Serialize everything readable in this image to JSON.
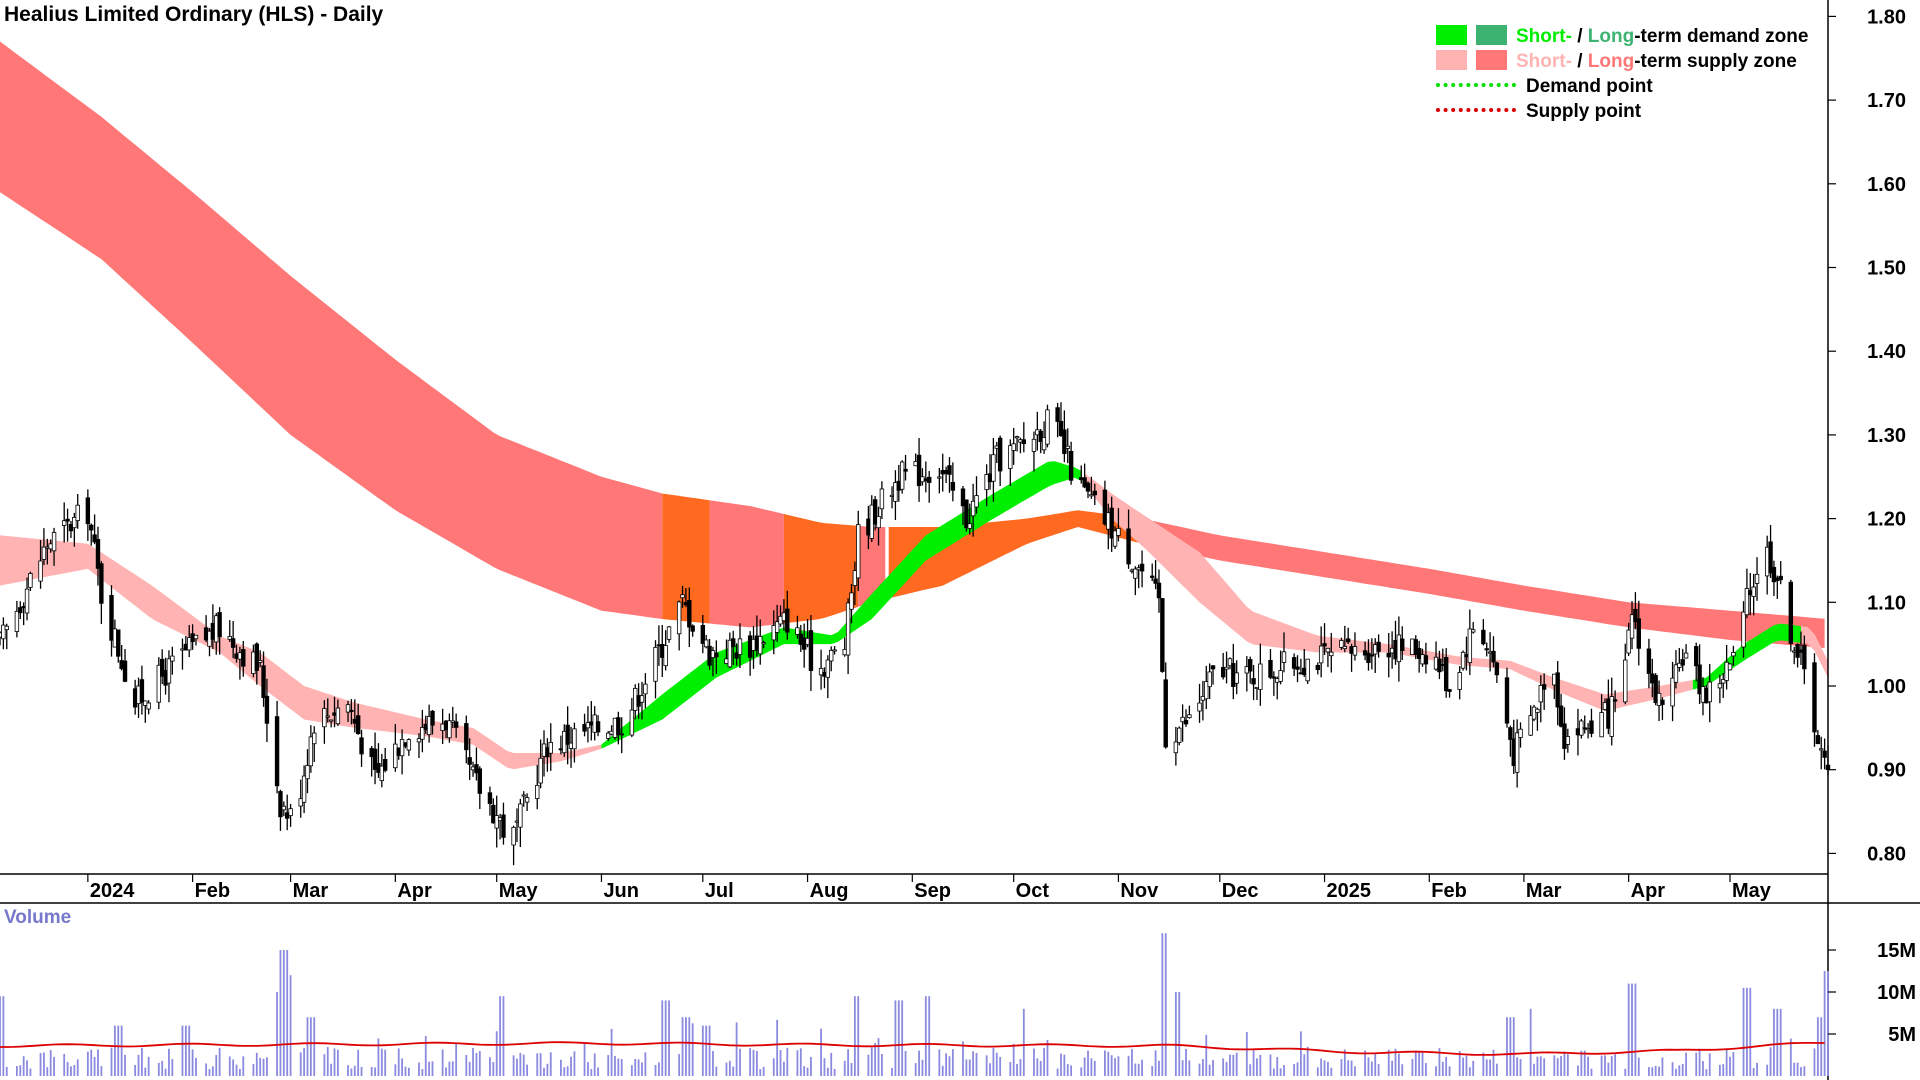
{
  "title": "Healius Limited Ordinary (HLS) - Daily",
  "legend": {
    "row1": {
      "short": "Short-",
      "sep": " / ",
      "long": "Long",
      "rest": "-term demand zone"
    },
    "row2": {
      "short": "Short-",
      "sep": " / ",
      "long": "Long",
      "rest": "-term supply zone"
    },
    "row3": "Demand point",
    "row4": "Supply point"
  },
  "volume_label": "Volume",
  "colors": {
    "short_demand": "#00ee00",
    "long_demand": "#3cb371",
    "short_supply": "#ffb3b3",
    "long_supply": "#ff7777",
    "overlap": "#ff6a20",
    "demand_point": "#00dd00",
    "supply_point": "#dd0000",
    "volume_bar": "#8a8ae0",
    "volume_avg": "#dd0000",
    "axis": "#000000",
    "volume_text": "#7777cc"
  },
  "chart_data": [
    {
      "type": "candlestick",
      "title": "Healius Limited Ordinary (HLS) - Daily",
      "ylim": [
        0.77,
        1.82
      ],
      "y_ticks": [
        0.8,
        0.9,
        1.0,
        1.1,
        1.2,
        1.3,
        1.4,
        1.5,
        1.6,
        1.7,
        1.8
      ],
      "y_tick_labels": [
        "0.80",
        "0.90",
        "1.00",
        "1.10",
        "1.20",
        "1.30",
        "1.40",
        "1.50",
        "1.60",
        "1.70",
        "1.80"
      ],
      "x_ticks": [
        "2024",
        "Feb",
        "Mar",
        "Apr",
        "May",
        "Jun",
        "Jul",
        "Aug",
        "Sep",
        "Oct",
        "Nov",
        "Dec",
        "2025",
        "Feb",
        "Mar",
        "Apr",
        "May"
      ],
      "x_tick_dates": [
        "2024-01-01",
        "2024-02-01",
        "2024-03-01",
        "2024-04-01",
        "2024-05-01",
        "2024-06-01",
        "2024-07-01",
        "2024-08-01",
        "2024-09-01",
        "2024-10-01",
        "2024-11-01",
        "2024-12-01",
        "2025-01-01",
        "2025-02-01",
        "2025-03-01",
        "2025-04-01",
        "2025-05-01"
      ],
      "x_range": [
        "2023-12-06",
        "2025-05-30"
      ],
      "close_anchors": [
        [
          "2023-12-06",
          1.05
        ],
        [
          "2023-12-20",
          1.17
        ],
        [
          "2024-01-01",
          1.21
        ],
        [
          "2024-01-05",
          1.11
        ],
        [
          "2024-01-15",
          0.98
        ],
        [
          "2024-01-30",
          1.04
        ],
        [
          "2024-02-09",
          1.07
        ],
        [
          "2024-02-21",
          1.02
        ],
        [
          "2024-02-27",
          0.86
        ],
        [
          "2024-03-02",
          0.84
        ],
        [
          "2024-03-08",
          0.96
        ],
        [
          "2024-03-18",
          0.98
        ],
        [
          "2024-03-26",
          0.89
        ],
        [
          "2024-04-05",
          0.95
        ],
        [
          "2024-04-16",
          0.96
        ],
        [
          "2024-04-24",
          0.89
        ],
        [
          "2024-05-02",
          0.84
        ],
        [
          "2024-05-05",
          0.81
        ],
        [
          "2024-05-16",
          0.93
        ],
        [
          "2024-05-30",
          0.95
        ],
        [
          "2024-06-08",
          0.96
        ],
        [
          "2024-06-19",
          1.05
        ],
        [
          "2024-06-25",
          1.1
        ],
        [
          "2024-07-03",
          1.04
        ],
        [
          "2024-07-15",
          1.05
        ],
        [
          "2024-07-26",
          1.08
        ],
        [
          "2024-08-04",
          1.02
        ],
        [
          "2024-08-12",
          1.05
        ],
        [
          "2024-08-16",
          1.18
        ],
        [
          "2024-08-28",
          1.25
        ],
        [
          "2024-09-09",
          1.26
        ],
        [
          "2024-09-17",
          1.2
        ],
        [
          "2024-09-26",
          1.27
        ],
        [
          "2024-10-04",
          1.29
        ],
        [
          "2024-10-12",
          1.32
        ],
        [
          "2024-10-20",
          1.24
        ],
        [
          "2024-10-30",
          1.19
        ],
        [
          "2024-11-09",
          1.13
        ],
        [
          "2024-11-13",
          1.1
        ],
        [
          "2024-11-15",
          0.94
        ],
        [
          "2024-11-22",
          0.96
        ],
        [
          "2024-11-30",
          1.02
        ],
        [
          "2024-12-09",
          1.01
        ],
        [
          "2024-12-25",
          1.03
        ],
        [
          "2025-01-08",
          1.04
        ],
        [
          "2025-01-20",
          1.05
        ],
        [
          "2025-02-02",
          1.04
        ],
        [
          "2025-02-07",
          1.0
        ],
        [
          "2025-02-15",
          1.08
        ],
        [
          "2025-02-20",
          1.03
        ],
        [
          "2025-02-26",
          0.92
        ],
        [
          "2025-03-05",
          0.98
        ],
        [
          "2025-03-09",
          1.04
        ],
        [
          "2025-03-13",
          0.94
        ],
        [
          "2025-03-24",
          0.96
        ],
        [
          "2025-03-30",
          0.98
        ],
        [
          "2025-04-02",
          1.09
        ],
        [
          "2025-04-08",
          1.0
        ],
        [
          "2025-04-12",
          0.96
        ],
        [
          "2025-04-17",
          1.04
        ],
        [
          "2025-04-24",
          0.99
        ],
        [
          "2025-05-02",
          1.03
        ],
        [
          "2025-05-06",
          1.1
        ],
        [
          "2025-05-11",
          1.17
        ],
        [
          "2025-05-15",
          1.13
        ],
        [
          "2025-05-18",
          1.08
        ],
        [
          "2025-05-24",
          1.0
        ],
        [
          "2025-05-28",
          0.92
        ],
        [
          "2025-05-30",
          0.89
        ]
      ],
      "long_term_zone_anchors": [
        [
          "2023-12-06",
          1.59,
          1.77
        ],
        [
          "2024-01-05",
          1.51,
          1.68
        ],
        [
          "2024-02-01",
          1.41,
          1.59
        ],
        [
          "2024-03-01",
          1.3,
          1.49
        ],
        [
          "2024-04-01",
          1.21,
          1.39
        ],
        [
          "2024-05-01",
          1.14,
          1.3
        ],
        [
          "2024-06-01",
          1.09,
          1.25
        ],
        [
          "2024-06-19",
          1.08,
          1.23
        ],
        [
          "2024-07-15",
          1.07,
          1.215
        ],
        [
          "2024-08-05",
          1.08,
          1.195
        ],
        [
          "2024-08-20",
          1.1,
          1.19
        ],
        [
          "2024-09-10",
          1.12,
          1.19
        ],
        [
          "2024-10-05",
          1.17,
          1.2
        ],
        [
          "2024-10-20",
          1.19,
          1.21
        ],
        [
          "2024-11-08",
          1.17,
          1.2
        ],
        [
          "2024-12-01",
          1.15,
          1.18
        ],
        [
          "2025-01-01",
          1.13,
          1.16
        ],
        [
          "2025-02-01",
          1.11,
          1.14
        ],
        [
          "2025-03-01",
          1.09,
          1.12
        ],
        [
          "2025-04-01",
          1.07,
          1.1
        ],
        [
          "2025-05-01",
          1.055,
          1.09
        ],
        [
          "2025-05-30",
          1.045,
          1.08
        ]
      ],
      "short_term_zone_anchors": [
        [
          "2023-12-06",
          1.12,
          1.18
        ],
        [
          "2024-01-01",
          1.14,
          1.17
        ],
        [
          "2024-01-20",
          1.08,
          1.12
        ],
        [
          "2024-02-09",
          1.04,
          1.06
        ],
        [
          "2024-02-21",
          1.0,
          1.04
        ],
        [
          "2024-03-05",
          0.96,
          1.0
        ],
        [
          "2024-03-20",
          0.95,
          0.98
        ],
        [
          "2024-04-10",
          0.94,
          0.96
        ],
        [
          "2024-04-24",
          0.93,
          0.95
        ],
        [
          "2024-05-05",
          0.9,
          0.92
        ],
        [
          "2024-05-20",
          0.91,
          0.92
        ],
        [
          "2024-06-01",
          0.925,
          0.93
        ],
        [
          "2024-06-19",
          0.96,
          0.99
        ],
        [
          "2024-07-05",
          1.01,
          1.04
        ],
        [
          "2024-07-25",
          1.05,
          1.07
        ],
        [
          "2024-08-09",
          1.05,
          1.06
        ],
        [
          "2024-08-20",
          1.08,
          1.11
        ],
        [
          "2024-09-05",
          1.15,
          1.18
        ],
        [
          "2024-09-25",
          1.2,
          1.23
        ],
        [
          "2024-10-12",
          1.24,
          1.27
        ],
        [
          "2024-10-20",
          1.25,
          1.26
        ],
        [
          "2024-10-30",
          1.2,
          1.23
        ],
        [
          "2024-11-10",
          1.16,
          1.2
        ],
        [
          "2024-11-25",
          1.1,
          1.16
        ],
        [
          "2024-12-10",
          1.05,
          1.09
        ],
        [
          "2024-12-30",
          1.04,
          1.06
        ],
        [
          "2025-01-20",
          1.04,
          1.05
        ],
        [
          "2025-02-10",
          1.025,
          1.035
        ],
        [
          "2025-02-25",
          1.02,
          1.03
        ],
        [
          "2025-03-10",
          0.995,
          1.01
        ],
        [
          "2025-03-25",
          0.97,
          0.99
        ],
        [
          "2025-04-10",
          0.985,
          1.0
        ],
        [
          "2025-04-24",
          1.0,
          1.01
        ],
        [
          "2025-05-05",
          1.03,
          1.05
        ],
        [
          "2025-05-15",
          1.055,
          1.075
        ],
        [
          "2025-05-25",
          1.05,
          1.07
        ],
        [
          "2025-05-30",
          1.01,
          1.03
        ]
      ]
    },
    {
      "type": "bar",
      "title": "Volume",
      "ylim": [
        0,
        20
      ],
      "y_ticks": [
        5,
        10,
        15
      ],
      "y_tick_labels": [
        "5M",
        "10M",
        "15M"
      ],
      "avg_anchors": [
        [
          "2023-12-06",
          3.6
        ],
        [
          "2024-02-01",
          3.7
        ],
        [
          "2024-06-01",
          3.9
        ],
        [
          "2024-08-01",
          3.7
        ],
        [
          "2024-11-15",
          3.6
        ],
        [
          "2025-01-15",
          2.8
        ],
        [
          "2025-03-01",
          2.6
        ],
        [
          "2025-04-15",
          3.0
        ],
        [
          "2025-05-30",
          4.0
        ]
      ],
      "spikes": [
        [
          "2023-12-06",
          9.5
        ],
        [
          "2024-01-10",
          6
        ],
        [
          "2024-01-30",
          6
        ],
        [
          "2024-02-25",
          10
        ],
        [
          "2024-02-28",
          15
        ],
        [
          "2024-03-02",
          12
        ],
        [
          "2024-03-07",
          7
        ],
        [
          "2024-05-03",
          9.5
        ],
        [
          "2024-06-20",
          9
        ],
        [
          "2024-06-26",
          7
        ],
        [
          "2024-07-02",
          6
        ],
        [
          "2024-08-16",
          9.5
        ],
        [
          "2024-08-28",
          9
        ],
        [
          "2024-09-06",
          9.5
        ],
        [
          "2024-10-05",
          8
        ],
        [
          "2024-11-15",
          17
        ],
        [
          "2024-11-18",
          10
        ],
        [
          "2025-02-25",
          7
        ],
        [
          "2025-03-02",
          8
        ],
        [
          "2025-04-02",
          11
        ],
        [
          "2025-05-06",
          10.5
        ],
        [
          "2025-05-15",
          8
        ],
        [
          "2025-05-28",
          7
        ],
        [
          "2025-05-30",
          12.5
        ]
      ]
    }
  ]
}
